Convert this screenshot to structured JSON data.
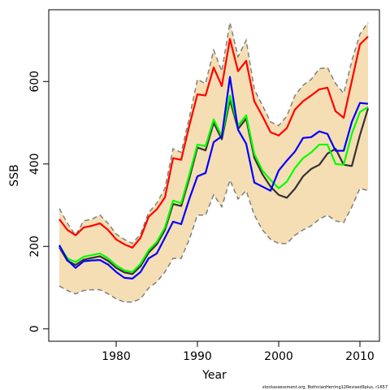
{
  "chart_data": {
    "type": "line",
    "x_label": "Year",
    "y_label": "SSB",
    "source": "stockassessment.org, BothnianHerring12Revised9plus, r1657",
    "x": [
      1973,
      1974,
      1975,
      1976,
      1977,
      1978,
      1979,
      1980,
      1981,
      1982,
      1983,
      1984,
      1985,
      1986,
      1987,
      1988,
      1989,
      1990,
      1991,
      1992,
      1993,
      1994,
      1995,
      1996,
      1997,
      1998,
      1999,
      2000,
      2001,
      2002,
      2003,
      2004,
      2005,
      2006,
      2007,
      2008,
      2009,
      2010,
      2011
    ],
    "band": {
      "color": "#f5deb3",
      "edge_color": "#7f7f7f",
      "upper": [
        292,
        256,
        227,
        262,
        266,
        276,
        256,
        230,
        217,
        207,
        230,
        282,
        305,
        341,
        437,
        428,
        512,
        605,
        595,
        676,
        625,
        743,
        660,
        700,
        581,
        542,
        502,
        493,
        516,
        566,
        591,
        605,
        631,
        634,
        595,
        571,
        650,
        715,
        743
      ],
      "lower": [
        104,
        93,
        85,
        93,
        95,
        95,
        85,
        73,
        65,
        65,
        73,
        99,
        114,
        138,
        171,
        171,
        217,
        276,
        276,
        325,
        296,
        361,
        315,
        335,
        276,
        240,
        217,
        207,
        207,
        227,
        240,
        250,
        266,
        276,
        262,
        258,
        296,
        341,
        335
      ]
    },
    "series": [
      {
        "color": "#333333",
        "values": [
          198,
          165,
          155,
          168,
          172,
          176,
          165,
          148,
          137,
          133,
          152,
          185,
          205,
          240,
          303,
          298,
          365,
          440,
          433,
          500,
          460,
          555,
          485,
          510,
          415,
          375,
          345,
          325,
          318,
          340,
          370,
          388,
          398,
          425,
          437,
          398,
          395,
          470,
          535
        ]
      },
      {
        "color": "#00ff00",
        "values": [
          201,
          171,
          162,
          175,
          179,
          183,
          171,
          154,
          142,
          138,
          158,
          191,
          211,
          246,
          311,
          305,
          374,
          447,
          443,
          508,
          467,
          566,
          493,
          518,
          424,
          384,
          361,
          341,
          357,
          390,
          414,
          428,
          447,
          447,
          400,
          398,
          473,
          526,
          538
        ]
      },
      {
        "color": "#0000ff",
        "values": [
          203,
          167,
          148,
          164,
          166,
          167,
          156,
          138,
          124,
          122,
          138,
          171,
          183,
          221,
          260,
          254,
          315,
          370,
          378,
          453,
          467,
          611,
          483,
          449,
          355,
          345,
          335,
          384,
          408,
          430,
          463,
          465,
          479,
          473,
          432,
          432,
          502,
          548,
          546
        ]
      },
      {
        "color": "#ff0000",
        "values": [
          266,
          240,
          227,
          246,
          250,
          256,
          240,
          217,
          205,
          197,
          221,
          272,
          290,
          319,
          414,
          410,
          493,
          569,
          566,
          634,
          589,
          703,
          625,
          650,
          552,
          516,
          477,
          469,
          487,
          532,
          552,
          566,
          581,
          585,
          528,
          512,
          601,
          690,
          709
        ]
      }
    ],
    "xlim": [
      1971.7,
      2012.4
    ],
    "ylim": [
      -30,
      774
    ],
    "xticks": [
      1980,
      1990,
      2000,
      2010
    ],
    "yticks": [
      0,
      200,
      400,
      600
    ]
  }
}
